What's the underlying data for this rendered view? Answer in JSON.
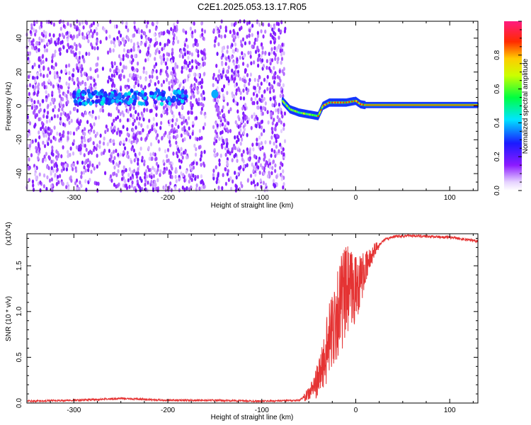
{
  "title": "C2E1.2025.053.13.17.R05",
  "chart_data": [
    {
      "type": "heatmap",
      "xlabel": "Height of straight line (km)",
      "ylabel": "Frequency (Hz)",
      "xlim": [
        -350,
        130
      ],
      "ylim": [
        -50,
        50
      ],
      "xticks": [
        -300,
        -200,
        -100,
        0,
        100
      ],
      "yticks": [
        -40,
        -20,
        0,
        20,
        40
      ],
      "colorbar": {
        "label": "Normalized spectral amplitude",
        "ticks": [
          0.0,
          0.2,
          0.4,
          0.6,
          0.8
        ],
        "range": [
          0,
          1
        ],
        "colormap": "rainbow (violet-blue-cyan-green-yellow-orange-red-magenta)"
      },
      "features": [
        {
          "name": "noise",
          "x_range": [
            -350,
            -75
          ],
          "y_range": [
            -50,
            50
          ],
          "amplitude": 0.1
        },
        {
          "name": "weak-band",
          "x_range": [
            -300,
            -180
          ],
          "y_center": 5,
          "amplitude": 0.3
        },
        {
          "name": "signal-track",
          "x": [
            -78,
            -70,
            -60,
            -50,
            -40,
            -35,
            -28,
            -20,
            -10,
            0,
            5,
            10,
            130
          ],
          "y": [
            3,
            -2,
            -4,
            -5,
            -6,
            0,
            2,
            2,
            2,
            3,
            1,
            0.5,
            0.5
          ],
          "amplitude": 0.8
        }
      ]
    },
    {
      "type": "line",
      "xlabel": "Height of straight line (km)",
      "ylabel": "SNR (10 * v/v)",
      "exponent_label": "(x10^4)",
      "xlim": [
        -350,
        130
      ],
      "ylim": [
        0,
        1.85
      ],
      "xticks": [
        -300,
        -200,
        -100,
        0,
        100
      ],
      "yticks": [
        0.0,
        0.5,
        1.0,
        1.5
      ],
      "series": [
        {
          "color": "#e53333",
          "x": [
            -350,
            -300,
            -270,
            -250,
            -200,
            -150,
            -100,
            -60,
            -50,
            -40,
            -30,
            -20,
            -10,
            0,
            10,
            20,
            30,
            40,
            60,
            80,
            100,
            130
          ],
          "y": [
            0.01,
            0.02,
            0.03,
            0.04,
            0.02,
            0.02,
            0.01,
            0.02,
            0.1,
            0.25,
            0.6,
            1.0,
            1.2,
            1.25,
            1.45,
            1.68,
            1.78,
            1.82,
            1.83,
            1.82,
            1.81,
            1.77
          ]
        }
      ]
    }
  ]
}
